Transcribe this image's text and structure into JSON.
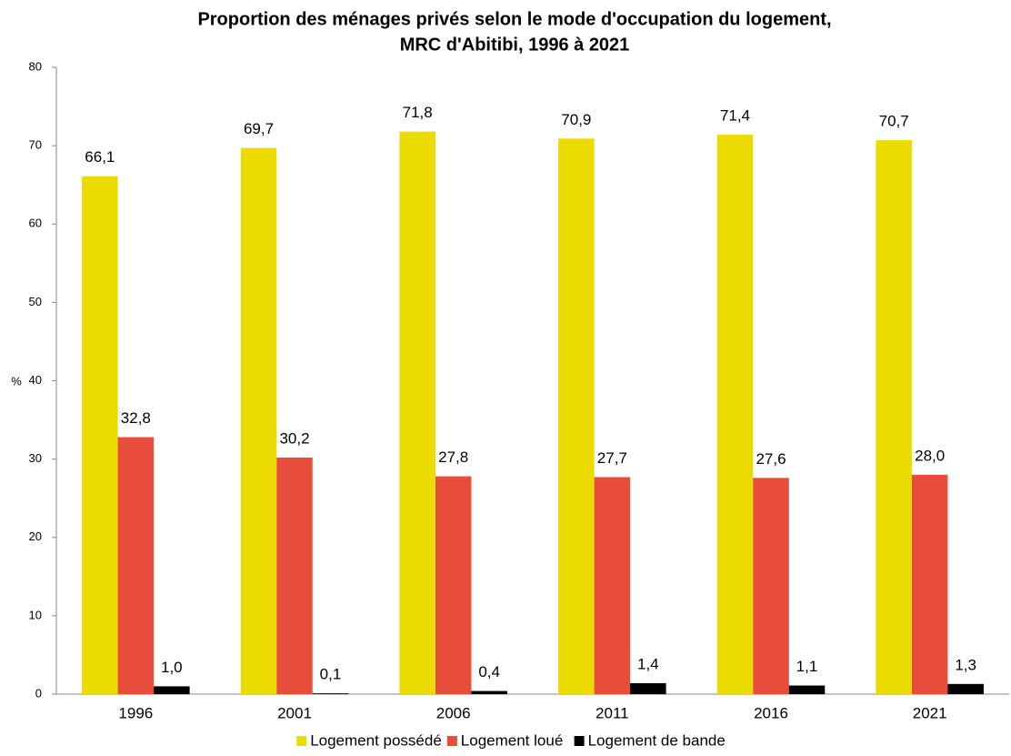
{
  "chart_data": {
    "type": "bar",
    "title": [
      "Proportion des ménages privés selon le mode d'occupation du logement,",
      "MRC d'Abitibi, 1996 à 2021"
    ],
    "ylabel": "%",
    "categories": [
      "1996",
      "2001",
      "2006",
      "2011",
      "2016",
      "2021"
    ],
    "series": [
      {
        "name": "Logement possédé",
        "color": "#ecdb00",
        "values": [
          66.1,
          69.7,
          71.8,
          70.9,
          71.4,
          70.7
        ],
        "value_labels": [
          "66,1",
          "69,7",
          "71,8",
          "70,9",
          "71,4",
          "70,7"
        ]
      },
      {
        "name": "Logement loué",
        "color": "#e84c3a",
        "values": [
          32.8,
          30.2,
          27.8,
          27.7,
          27.6,
          28.0
        ],
        "value_labels": [
          "32,8",
          "30,2",
          "27,8",
          "27,7",
          "27,6",
          "28,0"
        ]
      },
      {
        "name": "Logement de bande",
        "color": "#000000",
        "values": [
          1.0,
          0.1,
          0.4,
          1.4,
          1.1,
          1.3
        ],
        "value_labels": [
          "1,0",
          "0,1",
          "0,4",
          "1,4",
          "1,1",
          "1,3"
        ]
      }
    ],
    "ylim": [
      0,
      80
    ],
    "yticks": [
      0,
      10,
      20,
      30,
      40,
      50,
      60,
      70,
      80
    ],
    "grid": false,
    "legend": "bottom"
  }
}
